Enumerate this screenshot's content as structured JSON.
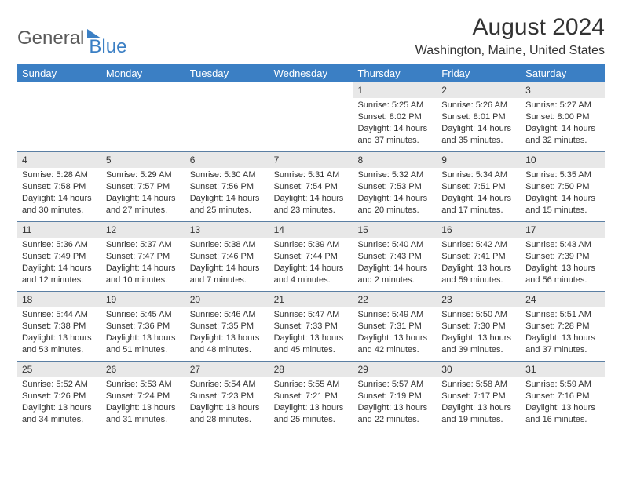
{
  "logo": {
    "general": "General",
    "blue": "Blue"
  },
  "title": "August 2024",
  "location": "Washington, Maine, United States",
  "colors": {
    "header_bg": "#3b7fc4",
    "header_text": "#ffffff",
    "daynum_bg": "#e8e8e8",
    "row_border": "#5b7fa3",
    "text": "#333333",
    "logo_gray": "#5a5a5a",
    "logo_blue": "#3b7fc4",
    "background": "#ffffff"
  },
  "day_names": [
    "Sunday",
    "Monday",
    "Tuesday",
    "Wednesday",
    "Thursday",
    "Friday",
    "Saturday"
  ],
  "weeks": [
    [
      {
        "n": "",
        "sr": "",
        "ss": "",
        "dl": ""
      },
      {
        "n": "",
        "sr": "",
        "ss": "",
        "dl": ""
      },
      {
        "n": "",
        "sr": "",
        "ss": "",
        "dl": ""
      },
      {
        "n": "",
        "sr": "",
        "ss": "",
        "dl": ""
      },
      {
        "n": "1",
        "sr": "Sunrise: 5:25 AM",
        "ss": "Sunset: 8:02 PM",
        "dl": "Daylight: 14 hours and 37 minutes."
      },
      {
        "n": "2",
        "sr": "Sunrise: 5:26 AM",
        "ss": "Sunset: 8:01 PM",
        "dl": "Daylight: 14 hours and 35 minutes."
      },
      {
        "n": "3",
        "sr": "Sunrise: 5:27 AM",
        "ss": "Sunset: 8:00 PM",
        "dl": "Daylight: 14 hours and 32 minutes."
      }
    ],
    [
      {
        "n": "4",
        "sr": "Sunrise: 5:28 AM",
        "ss": "Sunset: 7:58 PM",
        "dl": "Daylight: 14 hours and 30 minutes."
      },
      {
        "n": "5",
        "sr": "Sunrise: 5:29 AM",
        "ss": "Sunset: 7:57 PM",
        "dl": "Daylight: 14 hours and 27 minutes."
      },
      {
        "n": "6",
        "sr": "Sunrise: 5:30 AM",
        "ss": "Sunset: 7:56 PM",
        "dl": "Daylight: 14 hours and 25 minutes."
      },
      {
        "n": "7",
        "sr": "Sunrise: 5:31 AM",
        "ss": "Sunset: 7:54 PM",
        "dl": "Daylight: 14 hours and 23 minutes."
      },
      {
        "n": "8",
        "sr": "Sunrise: 5:32 AM",
        "ss": "Sunset: 7:53 PM",
        "dl": "Daylight: 14 hours and 20 minutes."
      },
      {
        "n": "9",
        "sr": "Sunrise: 5:34 AM",
        "ss": "Sunset: 7:51 PM",
        "dl": "Daylight: 14 hours and 17 minutes."
      },
      {
        "n": "10",
        "sr": "Sunrise: 5:35 AM",
        "ss": "Sunset: 7:50 PM",
        "dl": "Daylight: 14 hours and 15 minutes."
      }
    ],
    [
      {
        "n": "11",
        "sr": "Sunrise: 5:36 AM",
        "ss": "Sunset: 7:49 PM",
        "dl": "Daylight: 14 hours and 12 minutes."
      },
      {
        "n": "12",
        "sr": "Sunrise: 5:37 AM",
        "ss": "Sunset: 7:47 PM",
        "dl": "Daylight: 14 hours and 10 minutes."
      },
      {
        "n": "13",
        "sr": "Sunrise: 5:38 AM",
        "ss": "Sunset: 7:46 PM",
        "dl": "Daylight: 14 hours and 7 minutes."
      },
      {
        "n": "14",
        "sr": "Sunrise: 5:39 AM",
        "ss": "Sunset: 7:44 PM",
        "dl": "Daylight: 14 hours and 4 minutes."
      },
      {
        "n": "15",
        "sr": "Sunrise: 5:40 AM",
        "ss": "Sunset: 7:43 PM",
        "dl": "Daylight: 14 hours and 2 minutes."
      },
      {
        "n": "16",
        "sr": "Sunrise: 5:42 AM",
        "ss": "Sunset: 7:41 PM",
        "dl": "Daylight: 13 hours and 59 minutes."
      },
      {
        "n": "17",
        "sr": "Sunrise: 5:43 AM",
        "ss": "Sunset: 7:39 PM",
        "dl": "Daylight: 13 hours and 56 minutes."
      }
    ],
    [
      {
        "n": "18",
        "sr": "Sunrise: 5:44 AM",
        "ss": "Sunset: 7:38 PM",
        "dl": "Daylight: 13 hours and 53 minutes."
      },
      {
        "n": "19",
        "sr": "Sunrise: 5:45 AM",
        "ss": "Sunset: 7:36 PM",
        "dl": "Daylight: 13 hours and 51 minutes."
      },
      {
        "n": "20",
        "sr": "Sunrise: 5:46 AM",
        "ss": "Sunset: 7:35 PM",
        "dl": "Daylight: 13 hours and 48 minutes."
      },
      {
        "n": "21",
        "sr": "Sunrise: 5:47 AM",
        "ss": "Sunset: 7:33 PM",
        "dl": "Daylight: 13 hours and 45 minutes."
      },
      {
        "n": "22",
        "sr": "Sunrise: 5:49 AM",
        "ss": "Sunset: 7:31 PM",
        "dl": "Daylight: 13 hours and 42 minutes."
      },
      {
        "n": "23",
        "sr": "Sunrise: 5:50 AM",
        "ss": "Sunset: 7:30 PM",
        "dl": "Daylight: 13 hours and 39 minutes."
      },
      {
        "n": "24",
        "sr": "Sunrise: 5:51 AM",
        "ss": "Sunset: 7:28 PM",
        "dl": "Daylight: 13 hours and 37 minutes."
      }
    ],
    [
      {
        "n": "25",
        "sr": "Sunrise: 5:52 AM",
        "ss": "Sunset: 7:26 PM",
        "dl": "Daylight: 13 hours and 34 minutes."
      },
      {
        "n": "26",
        "sr": "Sunrise: 5:53 AM",
        "ss": "Sunset: 7:24 PM",
        "dl": "Daylight: 13 hours and 31 minutes."
      },
      {
        "n": "27",
        "sr": "Sunrise: 5:54 AM",
        "ss": "Sunset: 7:23 PM",
        "dl": "Daylight: 13 hours and 28 minutes."
      },
      {
        "n": "28",
        "sr": "Sunrise: 5:55 AM",
        "ss": "Sunset: 7:21 PM",
        "dl": "Daylight: 13 hours and 25 minutes."
      },
      {
        "n": "29",
        "sr": "Sunrise: 5:57 AM",
        "ss": "Sunset: 7:19 PM",
        "dl": "Daylight: 13 hours and 22 minutes."
      },
      {
        "n": "30",
        "sr": "Sunrise: 5:58 AM",
        "ss": "Sunset: 7:17 PM",
        "dl": "Daylight: 13 hours and 19 minutes."
      },
      {
        "n": "31",
        "sr": "Sunrise: 5:59 AM",
        "ss": "Sunset: 7:16 PM",
        "dl": "Daylight: 13 hours and 16 minutes."
      }
    ]
  ]
}
